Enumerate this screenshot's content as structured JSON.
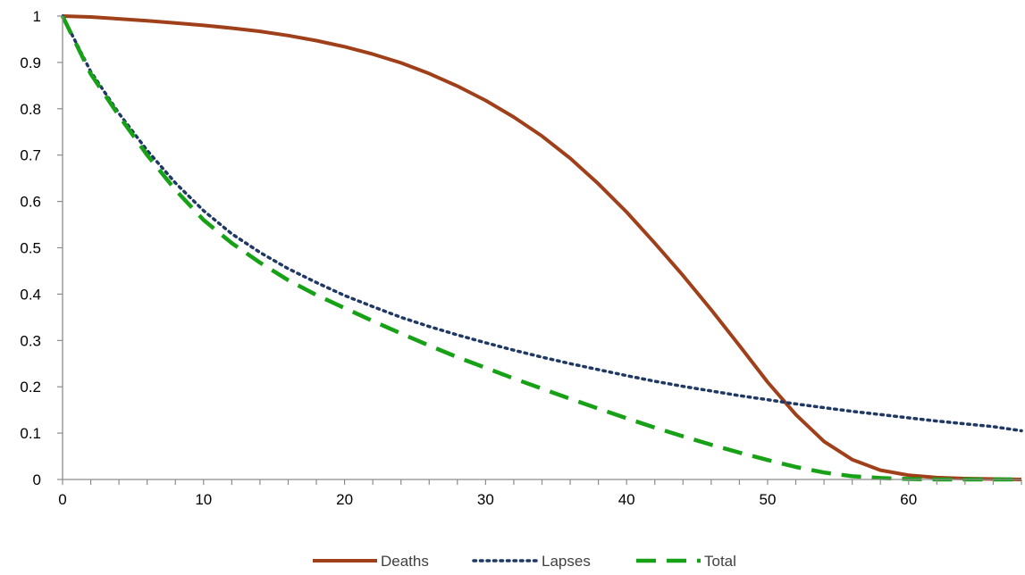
{
  "chart_data": {
    "type": "line",
    "title": "",
    "xlabel": "",
    "ylabel": "",
    "xlim": [
      0,
      68
    ],
    "ylim": [
      0,
      1
    ],
    "x_ticks": [
      0,
      10,
      20,
      30,
      40,
      50,
      60
    ],
    "y_ticks": [
      0,
      0.1,
      0.2,
      0.3,
      0.4,
      0.5,
      0.6,
      0.7,
      0.8,
      0.9,
      1
    ],
    "x_tick_labels": [
      "0",
      "10",
      "20",
      "30",
      "40",
      "50",
      "60"
    ],
    "y_tick_labels": [
      "0",
      "0.1",
      "0.2",
      "0.3",
      "0.4",
      "0.5",
      "0.6",
      "0.7",
      "0.8",
      "0.9",
      "1"
    ],
    "grid": false,
    "legend_position": "bottom",
    "x": [
      0,
      2,
      4,
      6,
      8,
      10,
      12,
      14,
      16,
      18,
      20,
      22,
      24,
      26,
      28,
      30,
      32,
      34,
      36,
      38,
      40,
      42,
      44,
      46,
      48,
      50,
      52,
      54,
      56,
      58,
      60,
      62,
      64,
      66,
      68
    ],
    "series": [
      {
        "name": "Deaths",
        "color": "#a0401a",
        "dash": "solid",
        "values": [
          1.0,
          0.998,
          0.994,
          0.99,
          0.985,
          0.98,
          0.974,
          0.967,
          0.958,
          0.947,
          0.934,
          0.918,
          0.899,
          0.876,
          0.849,
          0.818,
          0.782,
          0.741,
          0.693,
          0.638,
          0.577,
          0.51,
          0.44,
          0.366,
          0.289,
          0.21,
          0.14,
          0.082,
          0.043,
          0.02,
          0.009,
          0.004,
          0.002,
          0.001,
          0.0
        ]
      },
      {
        "name": "Lapses",
        "color": "#1f3864",
        "dash": "dotted",
        "values": [
          1.0,
          0.88,
          0.79,
          0.71,
          0.64,
          0.58,
          0.53,
          0.49,
          0.455,
          0.425,
          0.397,
          0.373,
          0.35,
          0.33,
          0.312,
          0.295,
          0.279,
          0.264,
          0.25,
          0.237,
          0.224,
          0.212,
          0.201,
          0.191,
          0.181,
          0.172,
          0.163,
          0.155,
          0.147,
          0.14,
          0.133,
          0.126,
          0.12,
          0.114,
          0.105
        ]
      },
      {
        "name": "Total",
        "color": "#16a116",
        "dash": "dashed",
        "values": [
          1.0,
          0.875,
          0.785,
          0.7,
          0.625,
          0.56,
          0.51,
          0.468,
          0.43,
          0.398,
          0.37,
          0.342,
          0.315,
          0.289,
          0.264,
          0.241,
          0.218,
          0.196,
          0.174,
          0.153,
          0.132,
          0.112,
          0.093,
          0.075,
          0.058,
          0.042,
          0.027,
          0.015,
          0.007,
          0.003,
          0.001,
          0.0,
          0.0,
          0.0,
          0.0
        ]
      }
    ]
  }
}
